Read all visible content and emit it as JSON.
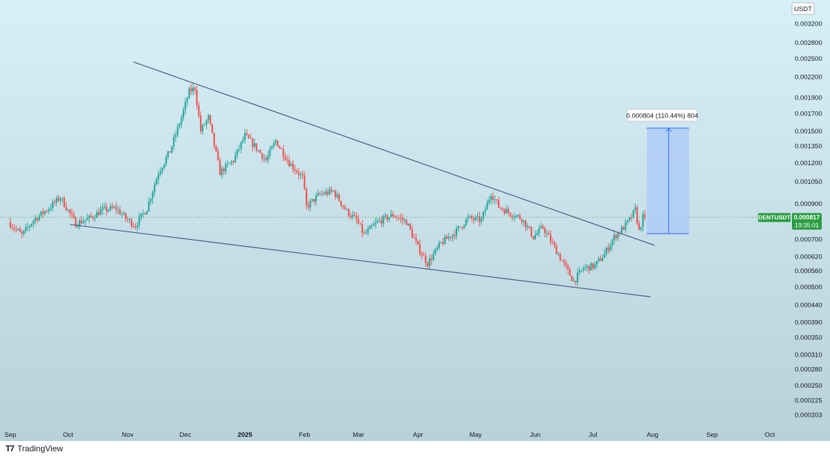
{
  "chart_data": {
    "type": "candlestick",
    "symbol": "DENTUSDT",
    "currency_label": "USDT",
    "scale": "log",
    "last_price": 0.000817,
    "last_price_label": "0.000817",
    "countdown": "19:35:01",
    "x_ticks": [
      {
        "date": "2024-09-01",
        "label": "Sep"
      },
      {
        "date": "2024-10-01",
        "label": "Oct"
      },
      {
        "date": "2024-11-01",
        "label": "Nov"
      },
      {
        "date": "2024-12-01",
        "label": "Dec"
      },
      {
        "date": "2025-01-01",
        "label": "2025"
      },
      {
        "date": "2025-02-01",
        "label": "Feb"
      },
      {
        "date": "2025-03-01",
        "label": "Mar"
      },
      {
        "date": "2025-04-01",
        "label": "Apr"
      },
      {
        "date": "2025-05-01",
        "label": "May"
      },
      {
        "date": "2025-06-01",
        "label": "Jun"
      },
      {
        "date": "2025-07-01",
        "label": "Jul"
      },
      {
        "date": "2025-08-01",
        "label": "Aug"
      },
      {
        "date": "2025-09-01",
        "label": "Sep"
      },
      {
        "date": "2025-10-01",
        "label": "Oct"
      }
    ],
    "y_ticks": [
      {
        "value": 0.0032,
        "label": "0.003200"
      },
      {
        "value": 0.0028,
        "label": "0.002800"
      },
      {
        "value": 0.0025,
        "label": "0.002500"
      },
      {
        "value": 0.0022,
        "label": "0.002200"
      },
      {
        "value": 0.0019,
        "label": "0.001900"
      },
      {
        "value": 0.0017,
        "label": "0.001700"
      },
      {
        "value": 0.0015,
        "label": "0.001500"
      },
      {
        "value": 0.00135,
        "label": "0.001350"
      },
      {
        "value": 0.0012,
        "label": "0.001200"
      },
      {
        "value": 0.00105,
        "label": "0.001050"
      },
      {
        "value": 0.0009,
        "label": "0.000900"
      },
      {
        "value": 0.0007,
        "label": "0.000700"
      },
      {
        "value": 0.00062,
        "label": "0.000620"
      },
      {
        "value": 0.00056,
        "label": "0.000560"
      },
      {
        "value": 0.0005,
        "label": "0.000500"
      },
      {
        "value": 0.00044,
        "label": "0.000440"
      },
      {
        "value": 0.00039,
        "label": "0.000390"
      },
      {
        "value": 0.00035,
        "label": "0.000350"
      },
      {
        "value": 0.00031,
        "label": "0.000310"
      },
      {
        "value": 0.00028,
        "label": "0.000280"
      },
      {
        "value": 0.00025,
        "label": "0.000250"
      },
      {
        "value": 0.000225,
        "label": "0.000225"
      },
      {
        "value": 0.000203,
        "label": "0.000203"
      }
    ],
    "price_path": [
      [
        "2024-09-01",
        0.00079
      ],
      [
        "2024-09-08",
        0.00072
      ],
      [
        "2024-09-14",
        0.0008
      ],
      [
        "2024-09-22",
        0.00087
      ],
      [
        "2024-09-28",
        0.00094
      ],
      [
        "2024-10-06",
        0.00078
      ],
      [
        "2024-10-13",
        0.00081
      ],
      [
        "2024-10-20",
        0.00086
      ],
      [
        "2024-10-27",
        0.00087
      ],
      [
        "2024-11-01",
        0.00081
      ],
      [
        "2024-11-06",
        0.00077
      ],
      [
        "2024-11-12",
        0.00087
      ],
      [
        "2024-11-18",
        0.00112
      ],
      [
        "2024-11-24",
        0.0013
      ],
      [
        "2024-11-30",
        0.00165
      ],
      [
        "2024-12-04",
        0.00198
      ],
      [
        "2024-12-07",
        0.00203
      ],
      [
        "2024-12-10",
        0.0015
      ],
      [
        "2024-12-14",
        0.00165
      ],
      [
        "2024-12-20",
        0.00112
      ],
      [
        "2024-12-27",
        0.00122
      ],
      [
        "2025-01-02",
        0.00145
      ],
      [
        "2025-01-07",
        0.00135
      ],
      [
        "2025-01-13",
        0.00122
      ],
      [
        "2025-01-18",
        0.0014
      ],
      [
        "2025-01-25",
        0.0012
      ],
      [
        "2025-02-01",
        0.00108
      ],
      [
        "2025-02-03",
        0.00088
      ],
      [
        "2025-02-10",
        0.00096
      ],
      [
        "2025-02-17",
        0.00098
      ],
      [
        "2025-02-24",
        0.00085
      ],
      [
        "2025-03-01",
        0.0008
      ],
      [
        "2025-03-05",
        0.00072
      ],
      [
        "2025-03-12",
        0.00079
      ],
      [
        "2025-03-20",
        0.00083
      ],
      [
        "2025-03-27",
        0.00079
      ],
      [
        "2025-04-02",
        0.00066
      ],
      [
        "2025-04-07",
        0.00059
      ],
      [
        "2025-04-14",
        0.00068
      ],
      [
        "2025-04-22",
        0.00074
      ],
      [
        "2025-04-28",
        0.00081
      ],
      [
        "2025-05-05",
        0.0008
      ],
      [
        "2025-05-10",
        0.00097
      ],
      [
        "2025-05-14",
        0.00088
      ],
      [
        "2025-05-20",
        0.00084
      ],
      [
        "2025-05-26",
        0.00081
      ],
      [
        "2025-06-01",
        0.00071
      ],
      [
        "2025-06-06",
        0.00076
      ],
      [
        "2025-06-12",
        0.00066
      ],
      [
        "2025-06-18",
        0.00057
      ],
      [
        "2025-06-22",
        0.00052
      ],
      [
        "2025-06-27",
        0.00057
      ],
      [
        "2025-07-03",
        0.00058
      ],
      [
        "2025-07-08",
        0.00063
      ],
      [
        "2025-07-13",
        0.00071
      ],
      [
        "2025-07-18",
        0.00076
      ],
      [
        "2025-07-21",
        0.0008
      ],
      [
        "2025-07-24",
        0.00086
      ],
      [
        "2025-07-26",
        0.00074
      ],
      [
        "2025-07-28",
        0.000817
      ]
    ],
    "wedge_upper": [
      [
        "2024-11-04",
        0.00244
      ],
      [
        "2025-08-02",
        0.00067
      ]
    ],
    "wedge_lower": [
      [
        "2024-10-02",
        0.000776
      ],
      [
        "2025-07-31",
        0.000466
      ]
    ],
    "target_box": {
      "start": "2025-07-29",
      "end": "2025-08-20",
      "low": 0.000727,
      "high": 0.001531,
      "label": "0.000804 (110.44%) 804"
    },
    "colors": {
      "up": "#26a69a",
      "down": "#ef5350",
      "last_price": "#2a9d41",
      "line": "#3c4a78",
      "box_fill": "#aecbf7",
      "box_stroke": "#2962ff"
    }
  },
  "footer": {
    "brand": "TradingView"
  }
}
